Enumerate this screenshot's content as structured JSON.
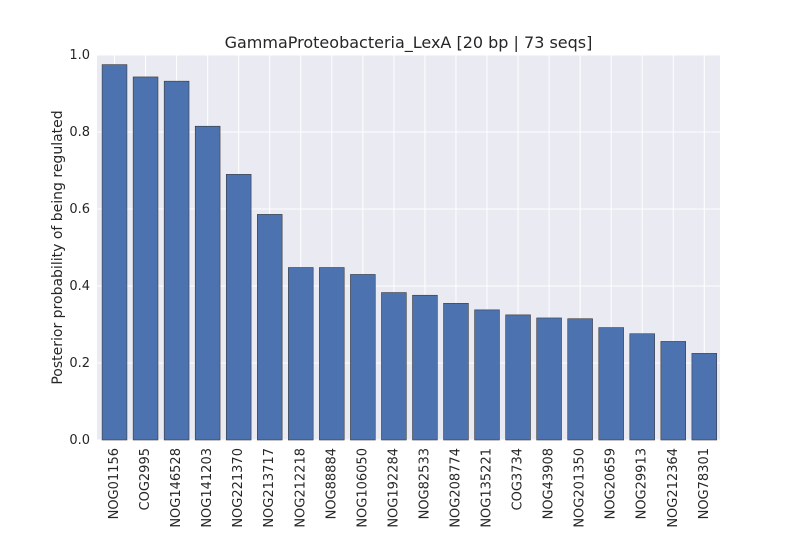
{
  "chart_data": {
    "type": "bar",
    "title": "GammaProteobacteria_LexA [20 bp | 73 seqs]",
    "xlabel": "",
    "ylabel": "Posterior probability of being regulated",
    "ylim": [
      0,
      1.0
    ],
    "yticks": [
      "0.0",
      "0.2",
      "0.4",
      "0.6",
      "0.8",
      "1.0"
    ],
    "categories": [
      "NOG01156",
      "COG2995",
      "NOG146528",
      "NOG141203",
      "NOG221370",
      "NOG213717",
      "NOG212218",
      "NOG88884",
      "NOG106050",
      "NOG192284",
      "NOG82533",
      "NOG208774",
      "NOG135221",
      "COG3734",
      "NOG43908",
      "NOG201350",
      "NOG20659",
      "NOG29913",
      "NOG212364",
      "NOG78301"
    ],
    "values": [
      0.975,
      0.943,
      0.932,
      0.815,
      0.69,
      0.586,
      0.448,
      0.448,
      0.43,
      0.383,
      0.376,
      0.355,
      0.338,
      0.325,
      0.317,
      0.315,
      0.292,
      0.276,
      0.256,
      0.225
    ],
    "colors": {
      "bar": "#4c72b0",
      "bar_edge": "#3a3a3a",
      "background": "#eaeaf2",
      "grid": "#ffffff"
    },
    "grid": true
  }
}
